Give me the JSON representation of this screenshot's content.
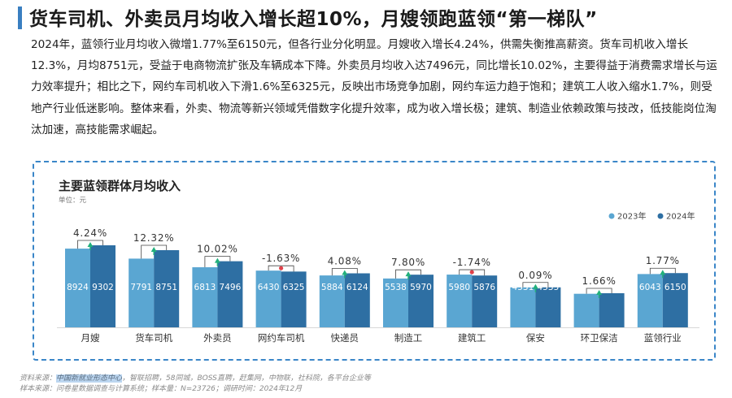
{
  "header": {
    "title": "货车司机、外卖员月均收入增长超10%，月嫂领跑蓝领“第一梯队”",
    "accent_color": "#3a7fc1"
  },
  "paragraph": "2024年，蓝领行业月均收入微增1.77%至6150元，但各行业分化明显。月嫂收入增长4.24%，供需失衡推高薪资。货车司机收入增长12.3%，月均8751元，受益于电商物流扩张及车辆成本下降。外卖员月均收入达7496元，同比增长10.02%，主要得益于消费需求增长与运力效率提升；相比之下，网约车司机收入下滑1.6%至6325元，反映出市场竞争加剧，网约车运力趋于饱和；建筑工人收入缩水1.7%，则受地产行业低迷影响。整体来看，外卖、物流等新兴领域凭借数字化提升效率，成为收入增长极；建筑、制造业依赖政策与技改，低技能岗位淘汰加速，高技能需求崛起。",
  "chart": {
    "title": "主要蓝领群体月均收入",
    "unit": "单位：元"
  },
  "chart_data": {
    "type": "bar",
    "title": "主要蓝领群体月均收入",
    "ylabel": "单位：元",
    "categories": [
      "月嫂",
      "货车司机",
      "外卖员",
      "网约车司机",
      "快递员",
      "制造工",
      "建筑工",
      "保安",
      "环卫保洁",
      "蓝领行业"
    ],
    "series": [
      {
        "name": "2023年",
        "color": "#5aa6d2",
        "values": [
          8924,
          7791,
          6813,
          6430,
          5884,
          5538,
          5980,
          4531,
          3805,
          6043
        ]
      },
      {
        "name": "2024年",
        "color": "#2e6fa3",
        "values": [
          9302,
          8751,
          7496,
          6325,
          6124,
          5970,
          5876,
          4535,
          3868,
          6150
        ]
      }
    ],
    "growth": [
      "4.24%",
      "12.32%",
      "10.02%",
      "-1.63%",
      "4.08%",
      "7.80%",
      "-1.74%",
      "0.09%",
      "1.66%",
      "1.77%"
    ],
    "growth_direction": [
      "up",
      "up",
      "up",
      "down",
      "up",
      "up",
      "down",
      "up",
      "up",
      "up"
    ],
    "up_color": "#22b07d",
    "down_color": "#e0414a",
    "legend_position": "top-right",
    "grid": false,
    "ylim": [
      0,
      9302
    ]
  },
  "source": {
    "label": "资料来源：",
    "highlighted": "中国新就业形态中心",
    "rest": "，智联招聘，58同城，BOSS直聘，赶集网，中物联，社科院，各平台企业等",
    "sample": "样本来源：问卷星数据调查与计算系统；样本量：N=23726；调研时间：2024年12月"
  }
}
